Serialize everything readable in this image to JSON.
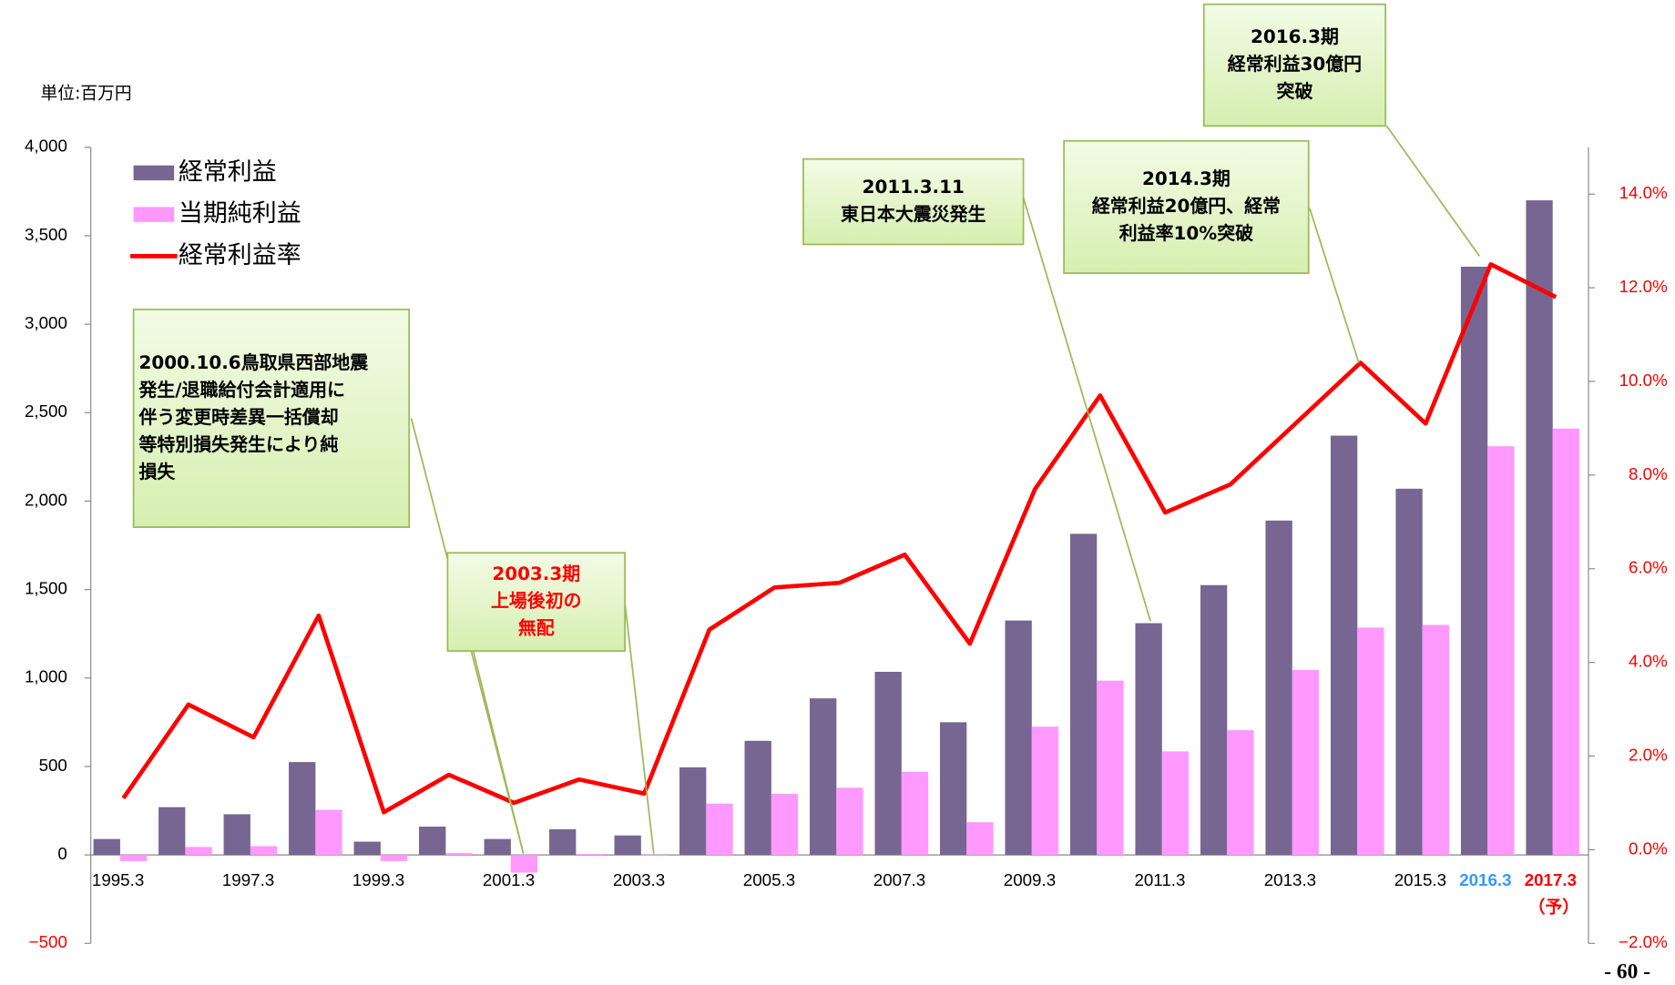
{
  "chart_data": {
    "type": "bar-line",
    "unit_label": "単位:百万円",
    "page_number": "- 60 -",
    "categories": [
      "1995.3",
      null,
      "1997.3",
      null,
      "1999.3",
      null,
      "2001.3",
      null,
      "2003.3",
      null,
      "2005.3",
      null,
      "2007.3",
      null,
      "2009.3",
      null,
      "2011.3",
      null,
      "2013.3",
      null,
      "2015.3",
      "2016.3",
      "2017.3"
    ],
    "category_colors": [
      null,
      null,
      null,
      null,
      null,
      null,
      null,
      null,
      null,
      null,
      null,
      null,
      null,
      null,
      null,
      null,
      null,
      null,
      null,
      null,
      null,
      "#3399ff",
      "#ff0000"
    ],
    "category_notes": [
      null,
      null,
      null,
      null,
      null,
      null,
      null,
      null,
      null,
      null,
      null,
      null,
      null,
      null,
      null,
      null,
      null,
      null,
      null,
      null,
      null,
      null,
      "（予）"
    ],
    "series": [
      {
        "name": "経常利益",
        "kind": "bar",
        "color": "#776691",
        "values": [
          90,
          270,
          230,
          525,
          75,
          160,
          90,
          145,
          110,
          495,
          645,
          885,
          1035,
          750,
          1325,
          1815,
          1310,
          1525,
          1890,
          2370,
          2070,
          3325,
          3700
        ]
      },
      {
        "name": "当期純利益",
        "kind": "bar",
        "color": "#ff99ff",
        "values": [
          -35,
          45,
          50,
          255,
          -35,
          10,
          -100,
          5,
          -5,
          290,
          345,
          380,
          470,
          185,
          725,
          985,
          585,
          705,
          1045,
          1285,
          1300,
          2310,
          2410
        ]
      },
      {
        "name": "経常利益率",
        "kind": "line",
        "axis": "y2",
        "color": "#ff0000",
        "values": [
          1.1,
          3.1,
          2.4,
          5.0,
          0.8,
          1.6,
          1.0,
          1.5,
          1.2,
          4.7,
          5.6,
          5.7,
          6.3,
          4.4,
          7.7,
          9.7,
          7.2,
          7.8,
          9.1,
          10.4,
          9.1,
          12.5,
          11.8
        ]
      }
    ],
    "ylim": [
      -500,
      4000
    ],
    "yticks": [
      {
        "value": -500,
        "label": "−500"
      },
      0,
      500,
      {
        "value": 1000,
        "label": "1,000"
      },
      {
        "value": 1500,
        "label": "1,500"
      },
      {
        "value": 2000,
        "label": "2,000"
      },
      {
        "value": 2500,
        "label": "2,500"
      },
      {
        "value": 3000,
        "label": "3,000"
      },
      {
        "value": 3500,
        "label": "3,500"
      },
      {
        "value": 4000,
        "label": "4,000"
      }
    ],
    "y2lim": [
      -2,
      15
    ],
    "y2ticks": [
      {
        "value": -2,
        "label": "−2.0%"
      },
      {
        "value": 0,
        "label": "0.0%"
      },
      {
        "value": 2,
        "label": "2.0%"
      },
      {
        "value": 4,
        "label": "4.0%"
      },
      {
        "value": 6,
        "label": "6.0%"
      },
      {
        "value": 8,
        "label": "8.0%"
      },
      {
        "value": 10,
        "label": "10.0%"
      },
      {
        "value": 12,
        "label": "12.0%"
      },
      {
        "value": 14,
        "label": "14.0%"
      }
    ],
    "y2_tick_color": "#ff0000",
    "legend": "upper left",
    "annotations": [
      {
        "lines": [
          "2000.10.6鳥取県西部地震",
          "発生/退職給付会計適用に",
          "伴う変更時差異一括償却",
          "等特別損失発生により純",
          "損失"
        ],
        "color": "#000000"
      },
      {
        "lines": [
          "2003.3期",
          "上場後初の",
          "無配"
        ],
        "color": "#ff0000"
      },
      {
        "lines": [
          "2011.3.11",
          "東日本大震災発生"
        ],
        "color": "#000000"
      },
      {
        "lines": [
          "2014.3期",
          "経常利益20億円、経常",
          "利益率10%突破"
        ],
        "color": "#000000"
      },
      {
        "lines": [
          "2016.3期",
          "経常利益30億円",
          "突破"
        ],
        "color": "#000000"
      }
    ]
  }
}
